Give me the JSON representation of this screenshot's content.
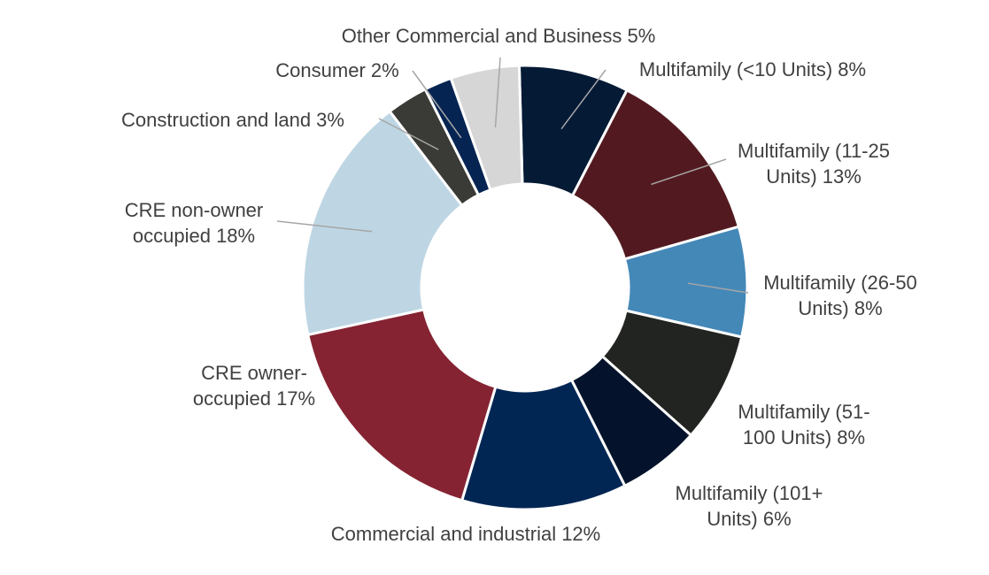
{
  "chart_data": {
    "type": "pie",
    "variant": "donut",
    "title": "",
    "series": [
      {
        "name": "Multifamily (<10 Units)",
        "value": 8,
        "color": "#041a35",
        "label_lines": [
          "Multifamily (<10 Units) 8%"
        ]
      },
      {
        "name": "Multifamily (11-25 Units)",
        "value": 13,
        "color": "#521a20",
        "label_lines": [
          "Multifamily (11-25",
          "Units) 13%"
        ]
      },
      {
        "name": "Multifamily (26-50 Units)",
        "value": 8,
        "color": "#4488b8",
        "label_lines": [
          "Multifamily (26-50",
          "Units) 8%"
        ]
      },
      {
        "name": "Multifamily (51-100 Units)",
        "value": 8,
        "color": "#222421",
        "label_lines": [
          "Multifamily (51-",
          "100 Units) 8%"
        ]
      },
      {
        "name": "Multifamily (101+ Units)",
        "value": 6,
        "color": "#04132b",
        "label_lines": [
          "Multifamily (101+",
          "Units) 6%"
        ]
      },
      {
        "name": "Commercial and industrial",
        "value": 12,
        "color": "#012654",
        "label_lines": [
          "Commercial and industrial  12%"
        ]
      },
      {
        "name": "CRE owner-occupied",
        "value": 17,
        "color": "#852332",
        "label_lines": [
          "CRE owner-",
          "occupied 17%"
        ]
      },
      {
        "name": "CRE non-owner occupied",
        "value": 18,
        "color": "#bed6e4",
        "label_lines": [
          "CRE non-owner",
          "occupied 18%"
        ]
      },
      {
        "name": "Construction and land",
        "value": 3,
        "color": "#3a3b37",
        "label_lines": [
          "Construction and land 3%"
        ]
      },
      {
        "name": "Consumer",
        "value": 2,
        "color": "#052452",
        "label_lines": [
          "Consumer 2%"
        ]
      },
      {
        "name": "Other Commercial and Business",
        "value": 5,
        "color": "#d6d6d6",
        "label_lines": [
          "Other Commercial and Business 5%"
        ]
      }
    ]
  }
}
